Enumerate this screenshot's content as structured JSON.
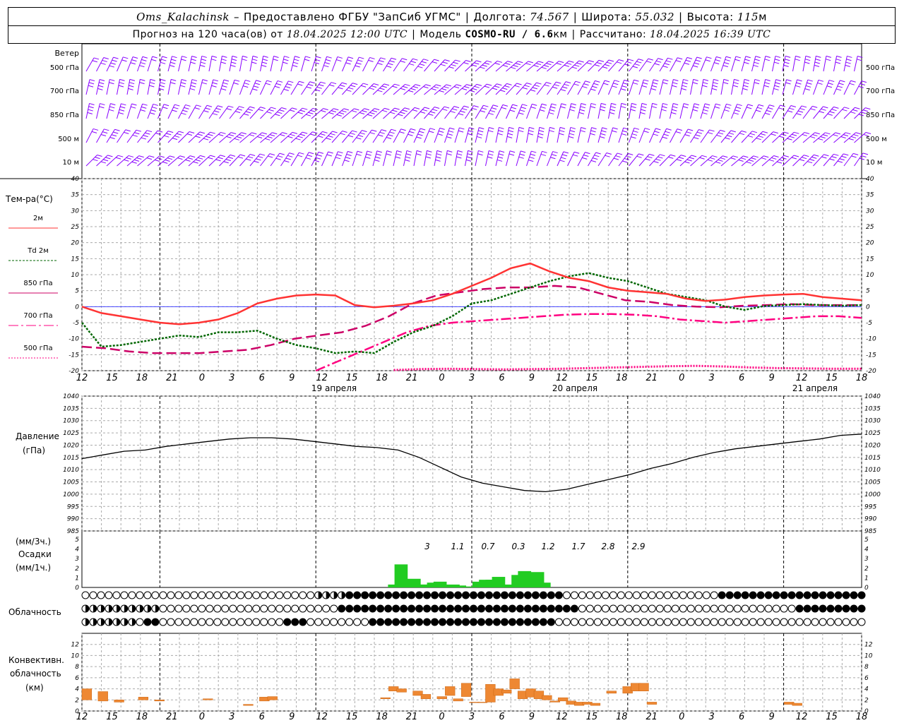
{
  "header": {
    "station": "Oms_Kalachinsk",
    "dash": "–",
    "provider": "Предоставлено ФГБУ \"ЗапСиб УГМС\"",
    "lon_label": "Долгота:",
    "lon": "74.567",
    "lat_label": "Широта:",
    "lat": "55.032",
    "alt_label": "Высота:",
    "alt": "115",
    "alt_unit": "м",
    "fc_label": "Прогноз на 120 часа(ов) от",
    "fc_start": "18.04.2025 12:00 UTC",
    "model_label": "Модель",
    "model": "COSMO-RU / 6.6",
    "model_unit": "км",
    "calc_label": "Рассчитано:",
    "calc": "18.04.2025 16:39 UTC"
  },
  "labels": {
    "wind": "Ветер",
    "wind_levels": [
      "500 гПа",
      "700 гПа",
      "850 гПа",
      "500 м",
      "10 м"
    ],
    "temp": "Тем-ра(°С)",
    "legend": [
      {
        "name": "2м",
        "color": "#ff3333"
      },
      {
        "name": "Td 2м",
        "color": "#006600"
      },
      {
        "name": "850 гПа",
        "color": "#cc0066"
      },
      {
        "name": "700 гПа",
        "color": "#ff0080"
      },
      {
        "name": "500 гПа",
        "color": "#ff0080"
      }
    ],
    "pressure": "Давление",
    "pressure_unit": "(гПа)",
    "precip_unit3": "(мм/3ч.)",
    "precip": "Осадки",
    "precip_unit1": "(мм/1ч.)",
    "clouds": "Облачность",
    "conv1": "Конвективн.",
    "conv2": "облачность",
    "conv3": "(км)",
    "dates": [
      "19 апреля",
      "20 апреля",
      "21 апреля"
    ]
  },
  "chart_data": {
    "type": "line",
    "hours": [
      12,
      15,
      18,
      21,
      0,
      3,
      6,
      9,
      12,
      15,
      18,
      21,
      0,
      3,
      6,
      9,
      12,
      15,
      18,
      21,
      0,
      3,
      6,
      9,
      12,
      15,
      18
    ],
    "temperature": {
      "ylim": [
        -20,
        40
      ],
      "ticks": [
        -20,
        -15,
        -10,
        -5,
        0,
        5,
        10,
        15,
        20,
        25,
        30,
        35,
        40
      ],
      "t2m": [
        0,
        -2,
        -3,
        -4,
        -5,
        -5.5,
        -5,
        -4,
        -2,
        1,
        2.5,
        3.5,
        3.8,
        3.5,
        0.5,
        -0.2,
        0.3,
        1,
        2,
        4,
        6.5,
        9,
        12,
        13.5,
        11,
        9,
        8,
        6,
        5,
        4.5,
        4,
        2.5,
        1.8,
        2.2,
        3,
        3.5,
        3.8,
        4,
        3,
        2.5,
        2
      ],
      "td2m": [
        -5,
        -12.5,
        -12,
        -11,
        -10,
        -9,
        -9.5,
        -8,
        -8,
        -7.5,
        -10,
        -12,
        -13,
        -14.5,
        -14,
        -14.5,
        -11,
        -8,
        -6,
        -3,
        1,
        2,
        4,
        6,
        8,
        9.5,
        10.5,
        9,
        8,
        6,
        4,
        3,
        2,
        0,
        -1,
        0.2,
        0.5,
        0.8,
        0.5,
        0.3,
        0.5
      ],
      "t850": [
        -12.5,
        -13,
        -14,
        -14.5,
        -14.5,
        -14.5,
        -14,
        -13.5,
        -12,
        -10,
        -9,
        -8,
        -6,
        -3,
        1,
        3.5,
        4.5,
        5.5,
        6,
        6,
        6.5,
        6,
        4,
        2,
        1.5,
        0.5,
        0,
        -0.2,
        0.3,
        0.5,
        0.8,
        0.5,
        0.5,
        0.5
      ],
      "t700": [
        -20,
        -17,
        -14,
        -11,
        -8,
        -6,
        -5,
        -4.5,
        -4,
        -3.5,
        -3,
        -2.5,
        -2.3,
        -2.3,
        -2.5,
        -3,
        -4,
        -4.5,
        -5,
        -4.5,
        -4,
        -3.5,
        -3,
        -3,
        -3.5
      ],
      "t500": [
        -19.8,
        -19.5,
        -19.4,
        -19.5,
        -19.6,
        -19.5,
        -19.4,
        -19.2,
        -19,
        -18.8,
        -18.6,
        -18.5,
        -18.7,
        -19,
        -19.2,
        -19.3,
        -19.4,
        -19.4
      ]
    },
    "pressure": {
      "ylim": [
        985,
        1040
      ],
      "ticks": [
        985,
        990,
        995,
        1000,
        1005,
        1010,
        1015,
        1020,
        1025,
        1030,
        1035,
        1040
      ],
      "values": [
        1014.5,
        1016,
        1017.5,
        1018,
        1019.5,
        1020.5,
        1021.5,
        1022.5,
        1023,
        1023,
        1022.5,
        1021.5,
        1020.5,
        1019.5,
        1019,
        1018,
        1015,
        1011,
        1007,
        1004.5,
        1003,
        1001.5,
        1001,
        1002,
        1004,
        1006,
        1008,
        1010.5,
        1012.5,
        1015,
        1017,
        1018.5,
        1019.5,
        1020.5,
        1021.5,
        1022.5,
        1024,
        1024.5
      ]
    },
    "precip": {
      "ylim": [
        0,
        5
      ],
      "totals": [
        "3",
        "1.1",
        "0.7",
        "0.3",
        "1.2",
        "1.7",
        "2.8",
        "2.9"
      ]
    },
    "convective": {
      "ylim": [
        0,
        14
      ],
      "ticks": [
        0,
        2,
        4,
        6,
        8,
        10,
        12
      ]
    },
    "wind_color": "#8800ff"
  }
}
